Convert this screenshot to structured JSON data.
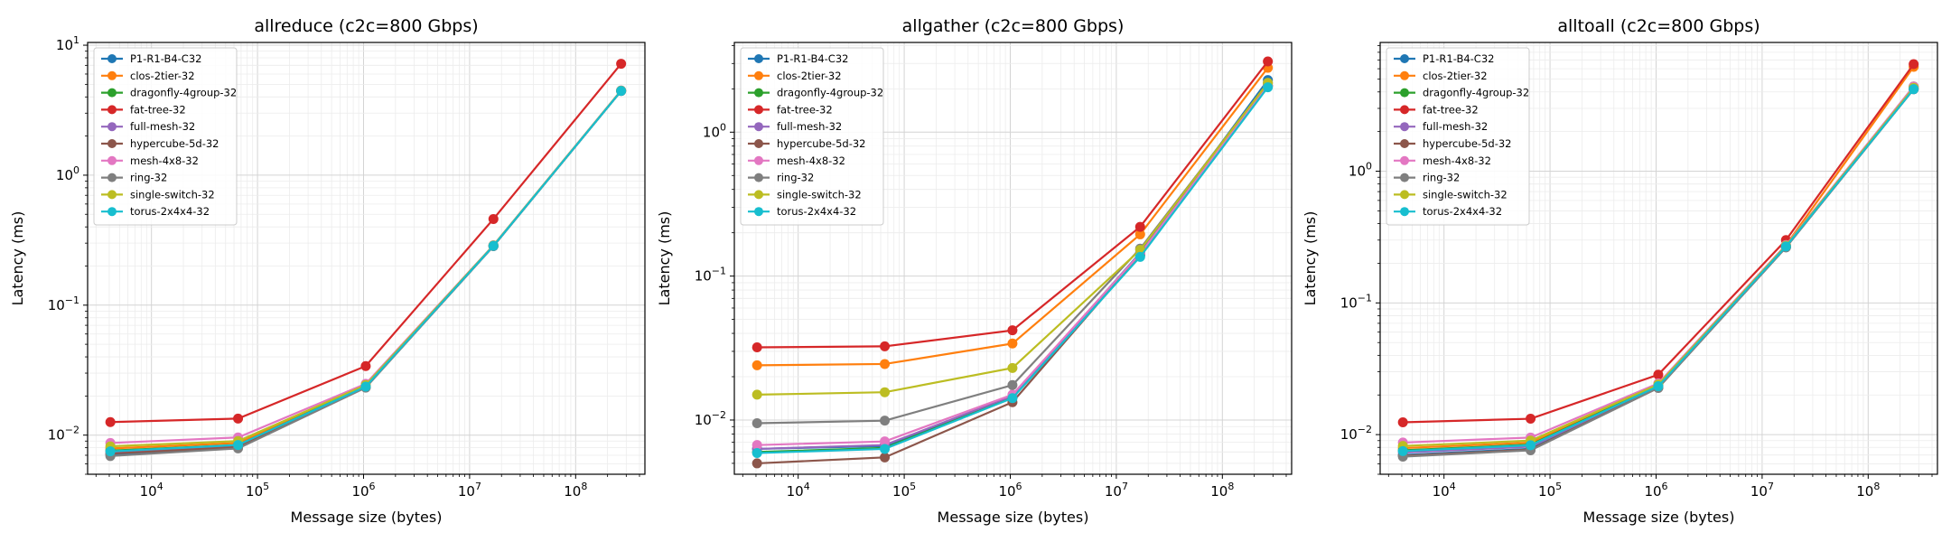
{
  "chart_data": [
    {
      "type": "line",
      "title": "allreduce (c2c=800 Gbps)",
      "xlabel": "Message size (bytes)",
      "ylabel": "Latency (ms)",
      "xscale": "log",
      "yscale": "log",
      "xlim": [
        2500,
        450000000
      ],
      "ylim": [
        0.005,
        10.5
      ],
      "x": [
        4096,
        65536,
        1048576,
        16777216,
        268435456
      ],
      "x_ticks": [
        {
          "base": "10",
          "exp": "4",
          "value": 10000
        },
        {
          "base": "10",
          "exp": "5",
          "value": 100000
        },
        {
          "base": "10",
          "exp": "6",
          "value": 1000000
        },
        {
          "base": "10",
          "exp": "7",
          "value": 10000000
        },
        {
          "base": "10",
          "exp": "8",
          "value": 100000000
        }
      ],
      "y_ticks": [
        {
          "base": "10",
          "exp": "−2",
          "value": 0.01
        },
        {
          "base": "10",
          "exp": "−1",
          "value": 0.1
        },
        {
          "base": "10",
          "exp": "0",
          "value": 1
        },
        {
          "base": "10",
          "exp": "1",
          "value": 10
        }
      ],
      "grid": true,
      "legend_position": "top-left",
      "series": [
        {
          "name": "P1-R1-B4-C32",
          "color": "#1f77b4",
          "values": [
            0.0071,
            0.0081,
            0.0234,
            0.285,
            4.45
          ]
        },
        {
          "name": "clos-2tier-32",
          "color": "#ff7f0e",
          "values": [
            0.0079,
            0.0087,
            0.024,
            0.287,
            4.47
          ]
        },
        {
          "name": "dragonfly-4group-32",
          "color": "#2ca02c",
          "values": [
            0.0076,
            0.0084,
            0.0238,
            0.287,
            4.46
          ]
        },
        {
          "name": "fat-tree-32",
          "color": "#d62728",
          "values": [
            0.0126,
            0.0134,
            0.034,
            0.46,
            7.2
          ]
        },
        {
          "name": "full-mesh-32",
          "color": "#9467bd",
          "values": [
            0.0074,
            0.0082,
            0.0235,
            0.286,
            4.45
          ]
        },
        {
          "name": "hypercube-5d-32",
          "color": "#8c564b",
          "values": [
            0.0072,
            0.0081,
            0.0234,
            0.285,
            4.45
          ]
        },
        {
          "name": "mesh-4x8-32",
          "color": "#e377c2",
          "values": [
            0.0087,
            0.0096,
            0.0248,
            0.289,
            4.49
          ]
        },
        {
          "name": "ring-32",
          "color": "#7f7f7f",
          "values": [
            0.0069,
            0.0079,
            0.0232,
            0.285,
            4.45
          ]
        },
        {
          "name": "single-switch-32",
          "color": "#bcbd22",
          "values": [
            0.0082,
            0.009,
            0.0243,
            0.288,
            4.47
          ]
        },
        {
          "name": "torus-2x4x4-32",
          "color": "#17becf",
          "values": [
            0.0075,
            0.0084,
            0.0236,
            0.286,
            4.45
          ]
        }
      ]
    },
    {
      "type": "line",
      "title": "allgather (c2c=800 Gbps)",
      "xlabel": "Message size (bytes)",
      "ylabel": "Latency (ms)",
      "xscale": "log",
      "yscale": "log",
      "xlim": [
        2500,
        450000000
      ],
      "ylim": [
        0.0042,
        4.2
      ],
      "x": [
        4096,
        65536,
        1048576,
        16777216,
        268435456
      ],
      "x_ticks": [
        {
          "base": "10",
          "exp": "4",
          "value": 10000
        },
        {
          "base": "10",
          "exp": "5",
          "value": 100000
        },
        {
          "base": "10",
          "exp": "6",
          "value": 1000000
        },
        {
          "base": "10",
          "exp": "7",
          "value": 10000000
        },
        {
          "base": "10",
          "exp": "8",
          "value": 100000000
        }
      ],
      "y_ticks": [
        {
          "base": "10",
          "exp": "−2",
          "value": 0.01
        },
        {
          "base": "10",
          "exp": "−1",
          "value": 0.1
        },
        {
          "base": "10",
          "exp": "0",
          "value": 1
        }
      ],
      "grid": true,
      "legend_position": "top-left",
      "series": [
        {
          "name": "P1-R1-B4-C32",
          "color": "#1f77b4",
          "values": [
            0.0063,
            0.0066,
            0.0145,
            0.145,
            2.3
          ]
        },
        {
          "name": "clos-2tier-32",
          "color": "#ff7f0e",
          "values": [
            0.024,
            0.0245,
            0.034,
            0.195,
            2.8
          ]
        },
        {
          "name": "dragonfly-4group-32",
          "color": "#2ca02c",
          "values": [
            0.006,
            0.0064,
            0.0143,
            0.14,
            2.1
          ]
        },
        {
          "name": "fat-tree-32",
          "color": "#d62728",
          "values": [
            0.032,
            0.0325,
            0.042,
            0.22,
            3.1
          ]
        },
        {
          "name": "full-mesh-32",
          "color": "#9467bd",
          "values": [
            0.0063,
            0.0067,
            0.0147,
            0.142,
            2.1
          ]
        },
        {
          "name": "hypercube-5d-32",
          "color": "#8c564b",
          "values": [
            0.005,
            0.0055,
            0.0133,
            0.14,
            2.1
          ]
        },
        {
          "name": "mesh-4x8-32",
          "color": "#e377c2",
          "values": [
            0.0067,
            0.0071,
            0.015,
            0.143,
            2.1
          ]
        },
        {
          "name": "ring-32",
          "color": "#7f7f7f",
          "values": [
            0.0095,
            0.0099,
            0.0175,
            0.155,
            2.2
          ]
        },
        {
          "name": "single-switch-32",
          "color": "#bcbd22",
          "values": [
            0.015,
            0.0156,
            0.023,
            0.152,
            2.2
          ]
        },
        {
          "name": "torus-2x4x4-32",
          "color": "#17becf",
          "values": [
            0.0059,
            0.0063,
            0.0142,
            0.136,
            2.05
          ]
        }
      ]
    },
    {
      "type": "line",
      "title": "alltoall (c2c=800 Gbps)",
      "xlabel": "Message size (bytes)",
      "ylabel": "Latency (ms)",
      "xscale": "log",
      "yscale": "log",
      "xlim": [
        2500,
        450000000
      ],
      "ylim": [
        0.005,
        9.5
      ],
      "x": [
        4096,
        65536,
        1048576,
        16777216,
        268435456
      ],
      "x_ticks": [
        {
          "base": "10",
          "exp": "4",
          "value": 10000
        },
        {
          "base": "10",
          "exp": "5",
          "value": 100000
        },
        {
          "base": "10",
          "exp": "6",
          "value": 1000000
        },
        {
          "base": "10",
          "exp": "7",
          "value": 10000000
        },
        {
          "base": "10",
          "exp": "8",
          "value": 100000000
        }
      ],
      "y_ticks": [
        {
          "base": "10",
          "exp": "−2",
          "value": 0.01
        },
        {
          "base": "10",
          "exp": "−1",
          "value": 0.1
        },
        {
          "base": "10",
          "exp": "0",
          "value": 1
        }
      ],
      "grid": true,
      "legend_position": "top-left",
      "series": [
        {
          "name": "P1-R1-B4-C32",
          "color": "#1f77b4",
          "values": [
            0.007,
            0.0078,
            0.0228,
            0.265,
            4.2
          ]
        },
        {
          "name": "clos-2tier-32",
          "color": "#ff7f0e",
          "values": [
            0.0079,
            0.0087,
            0.0238,
            0.275,
            6.2
          ]
        },
        {
          "name": "dragonfly-4group-32",
          "color": "#2ca02c",
          "values": [
            0.0076,
            0.0084,
            0.0235,
            0.27,
            4.4
          ]
        },
        {
          "name": "fat-tree-32",
          "color": "#d62728",
          "values": [
            0.0124,
            0.0132,
            0.0285,
            0.3,
            6.5
          ]
        },
        {
          "name": "full-mesh-32",
          "color": "#9467bd",
          "values": [
            0.0073,
            0.0081,
            0.0231,
            0.267,
            4.3
          ]
        },
        {
          "name": "hypercube-5d-32",
          "color": "#8c564b",
          "values": [
            0.0069,
            0.0077,
            0.0227,
            0.265,
            4.2
          ]
        },
        {
          "name": "mesh-4x8-32",
          "color": "#e377c2",
          "values": [
            0.0087,
            0.0095,
            0.0245,
            0.275,
            4.4
          ]
        },
        {
          "name": "ring-32",
          "color": "#7f7f7f",
          "values": [
            0.0068,
            0.0076,
            0.0226,
            0.264,
            4.2
          ]
        },
        {
          "name": "single-switch-32",
          "color": "#bcbd22",
          "values": [
            0.0082,
            0.009,
            0.024,
            0.272,
            4.3
          ]
        },
        {
          "name": "torus-2x4x4-32",
          "color": "#17becf",
          "values": [
            0.0075,
            0.0083,
            0.0233,
            0.268,
            4.2
          ]
        }
      ]
    }
  ]
}
